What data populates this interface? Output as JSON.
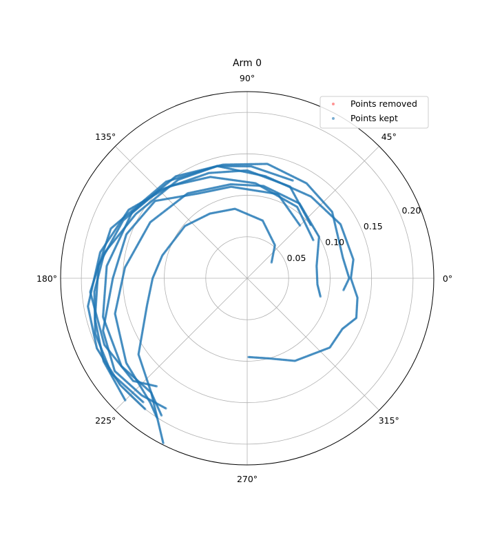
{
  "chart_data": {
    "type": "scatter",
    "projection": "polar",
    "title": "Arm 0",
    "rlim": [
      0,
      0.225
    ],
    "radial_ticks": [
      0.05,
      0.1,
      0.15,
      0.2
    ],
    "radial_tick_labels": [
      "0.05",
      "0.10",
      "0.15",
      "0.20"
    ],
    "angular_ticks_deg": [
      0,
      45,
      90,
      135,
      180,
      225,
      270,
      315
    ],
    "angular_tick_labels": [
      "0°",
      "45°",
      "90°",
      "135°",
      "180°",
      "225°",
      "270°",
      "315°"
    ],
    "grid": true,
    "legend": {
      "position": "top-right",
      "entries": [
        "Points removed",
        "Points kept"
      ]
    },
    "series": [
      {
        "name": "Points removed",
        "color": "#ff4d4d",
        "points": []
      },
      {
        "name": "Points kept",
        "color": "#1f77b4",
        "paths": [
          [
            [
              33,
              0.035
            ],
            [
              50,
              0.052
            ],
            [
              75,
              0.072
            ],
            [
              100,
              0.085
            ],
            [
              120,
              0.09
            ],
            [
              140,
              0.098
            ],
            [
              165,
              0.106
            ],
            [
              180,
              0.114
            ],
            [
              195,
              0.125
            ],
            [
              215,
              0.16
            ],
            [
              230,
              0.18
            ],
            [
              243,
              0.223
            ]
          ],
          [
            [
              -14,
              0.091
            ],
            [
              -5,
              0.085
            ],
            [
              10,
              0.085
            ],
            [
              30,
              0.1
            ],
            [
              55,
              0.11
            ],
            [
              80,
              0.113
            ],
            [
              100,
              0.115
            ],
            [
              125,
              0.125
            ],
            [
              150,
              0.135
            ],
            [
              175,
              0.148
            ],
            [
              195,
              0.165
            ],
            [
              215,
              0.178
            ],
            [
              232,
              0.19
            ],
            [
              237,
              0.2
            ]
          ],
          [
            [
              -7,
              0.117
            ],
            [
              0,
              0.123
            ],
            [
              12,
              0.118
            ],
            [
              38,
              0.13
            ],
            [
              58,
              0.135
            ],
            [
              80,
              0.14
            ],
            [
              102,
              0.14
            ],
            [
              125,
              0.15
            ],
            [
              150,
              0.16
            ],
            [
              175,
              0.17
            ],
            [
              195,
              0.18
            ],
            [
              215,
              0.185
            ],
            [
              230,
              0.18
            ],
            [
              238,
              0.195
            ]
          ],
          [
            [
              -89,
              0.095
            ],
            [
              -75,
              0.1
            ],
            [
              -60,
              0.115
            ],
            [
              -40,
              0.13
            ],
            [
              -28,
              0.13
            ],
            [
              -20,
              0.14
            ],
            [
              -10,
              0.135
            ],
            [
              0,
              0.125
            ],
            [
              10,
              0.13
            ],
            [
              30,
              0.13
            ],
            [
              52,
              0.125
            ],
            [
              80,
              0.125
            ],
            [
              105,
              0.14
            ],
            [
              130,
              0.152
            ],
            [
              160,
              0.175
            ],
            [
              185,
              0.19
            ],
            [
              205,
              0.19
            ],
            [
              222,
              0.185
            ],
            [
              230,
              0.17
            ]
          ],
          [
            [
              45,
              0.09
            ],
            [
              70,
              0.108
            ],
            [
              100,
              0.112
            ],
            [
              120,
              0.118
            ],
            [
              140,
              0.145
            ],
            [
              160,
              0.155
            ],
            [
              180,
              0.162
            ],
            [
              200,
              0.185
            ],
            [
              215,
              0.195
            ],
            [
              228,
              0.19
            ],
            [
              238,
              0.185
            ]
          ],
          [
            [
              65,
              0.13
            ],
            [
              88,
              0.135
            ],
            [
              105,
              0.14
            ],
            [
              125,
              0.145
            ],
            [
              150,
              0.155
            ],
            [
              170,
              0.175
            ],
            [
              185,
              0.185
            ],
            [
              200,
              0.195
            ],
            [
              215,
              0.2
            ],
            [
              230,
              0.195
            ]
          ],
          [
            [
              40,
              0.1
            ],
            [
              65,
              0.122
            ],
            [
              90,
              0.13
            ],
            [
              110,
              0.135
            ],
            [
              135,
              0.15
            ],
            [
              155,
              0.165
            ],
            [
              175,
              0.18
            ],
            [
              195,
              0.19
            ],
            [
              210,
              0.2
            ],
            [
              225,
              0.208
            ]
          ],
          [
            [
              30,
              0.092
            ],
            [
              55,
              0.105
            ],
            [
              85,
              0.115
            ],
            [
              110,
              0.13
            ],
            [
              130,
              0.145
            ],
            [
              150,
              0.165
            ],
            [
              170,
              0.18
            ],
            [
              190,
              0.195
            ],
            [
              205,
              0.2
            ],
            [
              220,
              0.2
            ],
            [
              232,
              0.2
            ]
          ]
        ]
      }
    ]
  }
}
